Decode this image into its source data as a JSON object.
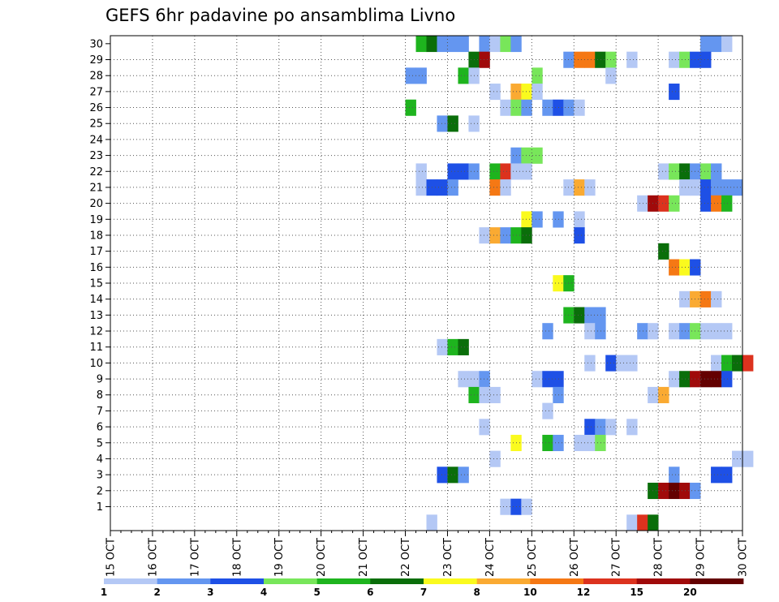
{
  "chart_data": {
    "type": "heatmap",
    "title": "GEFS 6hr padavine po ansamblima Livno",
    "xlabel": "",
    "ylabel": "",
    "x_start": "15 OCT 00h",
    "x_end": "30 OCT 00h",
    "x_step_hours": 6,
    "xticks": [
      "15 OCT",
      "16 OCT",
      "17 OCT",
      "18 OCT",
      "19 OCT",
      "20 OCT",
      "21 OCT",
      "22 OCT",
      "23 OCT",
      "24 OCT",
      "25 OCT",
      "26 OCT",
      "27 OCT",
      "28 OCT",
      "29 OCT",
      "30 OCT"
    ],
    "ylim": [
      0,
      30
    ],
    "yticks": [
      1,
      2,
      3,
      4,
      5,
      6,
      7,
      8,
      9,
      10,
      11,
      12,
      13,
      14,
      15,
      16,
      17,
      18,
      19,
      20,
      21,
      22,
      23,
      24,
      25,
      26,
      27,
      28,
      29,
      30
    ],
    "grid": true,
    "legend": "bottom",
    "colorbar": {
      "levels": [
        "1",
        "2",
        "3",
        "4",
        "5",
        "6",
        "7",
        "8",
        "10",
        "12",
        "15",
        "20"
      ],
      "colors": [
        "#b4c8f5",
        "#6496f0",
        "#1e50e6",
        "#78e65a",
        "#1eb41e",
        "#0a6e0a",
        "#fafa1e",
        "#faaa32",
        "#f57814",
        "#dc321e",
        "#a00a0a",
        "#640000"
      ]
    },
    "cells": [
      {
        "m": 30,
        "c": [
          [
            29,
            5
          ],
          [
            30,
            6
          ],
          [
            31,
            2
          ],
          [
            32,
            2
          ],
          [
            33,
            2
          ],
          [
            35,
            2
          ],
          [
            36,
            1
          ],
          [
            37,
            4
          ],
          [
            38,
            2
          ],
          [
            56,
            2
          ],
          [
            57,
            2
          ],
          [
            58,
            1
          ]
        ]
      },
      {
        "m": 29,
        "c": [
          [
            34,
            6
          ],
          [
            35,
            11
          ],
          [
            43,
            2
          ],
          [
            44,
            9
          ],
          [
            45,
            9
          ],
          [
            46,
            6
          ],
          [
            47,
            4
          ],
          [
            49,
            1
          ],
          [
            53,
            1
          ],
          [
            54,
            4
          ],
          [
            55,
            3
          ],
          [
            56,
            3
          ]
        ]
      },
      {
        "m": 28,
        "c": [
          [
            28,
            2
          ],
          [
            29,
            2
          ],
          [
            33,
            5
          ],
          [
            34,
            1
          ],
          [
            40,
            4
          ],
          [
            47,
            1
          ]
        ]
      },
      {
        "m": 27,
        "c": [
          [
            36,
            1
          ],
          [
            38,
            8
          ],
          [
            39,
            7
          ],
          [
            40,
            1
          ],
          [
            53,
            3
          ]
        ]
      },
      {
        "m": 26,
        "c": [
          [
            28,
            5
          ],
          [
            37,
            1
          ],
          [
            38,
            4
          ],
          [
            39,
            2
          ],
          [
            41,
            2
          ],
          [
            42,
            3
          ],
          [
            43,
            2
          ],
          [
            44,
            1
          ]
        ]
      },
      {
        "m": 25,
        "c": [
          [
            31,
            2
          ],
          [
            32,
            6
          ],
          [
            34,
            1
          ]
        ]
      },
      {
        "m": 23,
        "c": [
          [
            38,
            2
          ],
          [
            39,
            4
          ],
          [
            40,
            4
          ]
        ]
      },
      {
        "m": 22,
        "c": [
          [
            29,
            1
          ],
          [
            32,
            3
          ],
          [
            33,
            3
          ],
          [
            34,
            2
          ],
          [
            36,
            5
          ],
          [
            37,
            10
          ],
          [
            38,
            1
          ],
          [
            39,
            1
          ],
          [
            52,
            1
          ],
          [
            53,
            4
          ],
          [
            54,
            6
          ],
          [
            55,
            2
          ],
          [
            56,
            4
          ],
          [
            57,
            2
          ]
        ]
      },
      {
        "m": 21,
        "c": [
          [
            29,
            1
          ],
          [
            30,
            3
          ],
          [
            31,
            3
          ],
          [
            32,
            2
          ],
          [
            36,
            9
          ],
          [
            37,
            1
          ],
          [
            43,
            1
          ],
          [
            44,
            8
          ],
          [
            45,
            1
          ],
          [
            54,
            1
          ],
          [
            55,
            1
          ],
          [
            56,
            3
          ],
          [
            57,
            2
          ],
          [
            58,
            2
          ],
          [
            59,
            2
          ]
        ]
      },
      {
        "m": 20,
        "c": [
          [
            50,
            1
          ],
          [
            51,
            11
          ],
          [
            52,
            10
          ],
          [
            53,
            4
          ],
          [
            56,
            3
          ],
          [
            57,
            9
          ],
          [
            58,
            5
          ]
        ]
      },
      {
        "m": 19,
        "c": [
          [
            39,
            7
          ],
          [
            40,
            2
          ],
          [
            42,
            2
          ],
          [
            44,
            1
          ]
        ]
      },
      {
        "m": 18,
        "c": [
          [
            35,
            1
          ],
          [
            36,
            8
          ],
          [
            37,
            2
          ],
          [
            38,
            5
          ],
          [
            39,
            6
          ],
          [
            44,
            3
          ]
        ]
      },
      {
        "m": 17,
        "c": [
          [
            52,
            6
          ]
        ]
      },
      {
        "m": 16,
        "c": [
          [
            53,
            9
          ],
          [
            54,
            7
          ],
          [
            55,
            3
          ]
        ]
      },
      {
        "m": 15,
        "c": [
          [
            42,
            7
          ],
          [
            43,
            5
          ]
        ]
      },
      {
        "m": 14,
        "c": [
          [
            54,
            1
          ],
          [
            55,
            8
          ],
          [
            56,
            9
          ],
          [
            57,
            1
          ]
        ]
      },
      {
        "m": 13,
        "c": [
          [
            43,
            5
          ],
          [
            44,
            6
          ],
          [
            45,
            2
          ],
          [
            46,
            2
          ]
        ]
      },
      {
        "m": 12,
        "c": [
          [
            41,
            2
          ],
          [
            45,
            1
          ],
          [
            46,
            2
          ],
          [
            50,
            2
          ],
          [
            51,
            1
          ],
          [
            53,
            1
          ],
          [
            54,
            2
          ],
          [
            55,
            4
          ],
          [
            56,
            1
          ],
          [
            57,
            1
          ],
          [
            58,
            1
          ]
        ]
      },
      {
        "m": 11,
        "c": [
          [
            31,
            1
          ],
          [
            32,
            5
          ],
          [
            33,
            6
          ]
        ]
      },
      {
        "m": 10,
        "c": [
          [
            45,
            1
          ],
          [
            47,
            3
          ],
          [
            48,
            1
          ],
          [
            49,
            1
          ],
          [
            57,
            1
          ],
          [
            58,
            5
          ],
          [
            59,
            6
          ],
          [
            60,
            10
          ]
        ]
      },
      {
        "m": 9,
        "c": [
          [
            33,
            1
          ],
          [
            34,
            1
          ],
          [
            35,
            2
          ],
          [
            40,
            1
          ],
          [
            41,
            3
          ],
          [
            42,
            3
          ],
          [
            53,
            1
          ],
          [
            54,
            6
          ],
          [
            55,
            11
          ],
          [
            56,
            12
          ],
          [
            57,
            12
          ],
          [
            58,
            3
          ]
        ]
      },
      {
        "m": 8,
        "c": [
          [
            34,
            5
          ],
          [
            35,
            1
          ],
          [
            36,
            1
          ],
          [
            42,
            2
          ],
          [
            51,
            1
          ],
          [
            52,
            8
          ]
        ]
      },
      {
        "m": 7,
        "c": [
          [
            41,
            1
          ]
        ]
      },
      {
        "m": 6,
        "c": [
          [
            35,
            1
          ],
          [
            45,
            3
          ],
          [
            46,
            2
          ],
          [
            47,
            1
          ],
          [
            49,
            1
          ]
        ]
      },
      {
        "m": 5,
        "c": [
          [
            38,
            7
          ],
          [
            41,
            5
          ],
          [
            42,
            2
          ],
          [
            44,
            1
          ],
          [
            45,
            1
          ],
          [
            46,
            4
          ]
        ]
      },
      {
        "m": 4,
        "c": [
          [
            36,
            1
          ],
          [
            59,
            1
          ],
          [
            60,
            1
          ]
        ]
      },
      {
        "m": 3,
        "c": [
          [
            31,
            3
          ],
          [
            32,
            6
          ],
          [
            33,
            2
          ],
          [
            53,
            2
          ],
          [
            57,
            3
          ],
          [
            58,
            3
          ]
        ]
      },
      {
        "m": 2,
        "c": [
          [
            51,
            6
          ],
          [
            52,
            11
          ],
          [
            53,
            12
          ],
          [
            54,
            11
          ],
          [
            55,
            2
          ]
        ]
      },
      {
        "m": 1,
        "c": [
          [
            37,
            1
          ],
          [
            38,
            3
          ],
          [
            39,
            1
          ]
        ]
      },
      {
        "m": 0,
        "c": [
          [
            30,
            1
          ],
          [
            49,
            1
          ],
          [
            50,
            10
          ],
          [
            51,
            6
          ]
        ]
      }
    ]
  }
}
